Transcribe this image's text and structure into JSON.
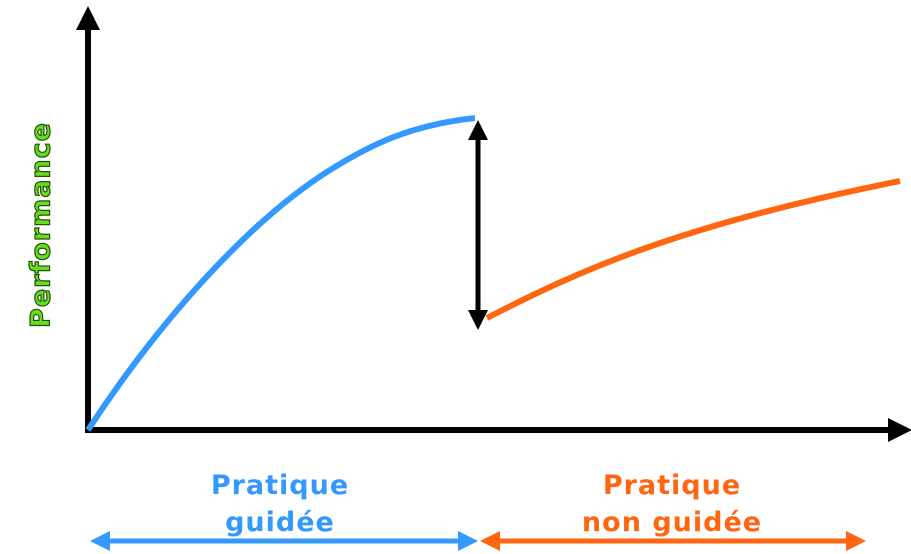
{
  "y_axis_label": "Performance",
  "phases": [
    {
      "lines": [
        "Pratique",
        "guidée"
      ]
    },
    {
      "lines": [
        "Pratique",
        "non guidée"
      ]
    }
  ]
}
